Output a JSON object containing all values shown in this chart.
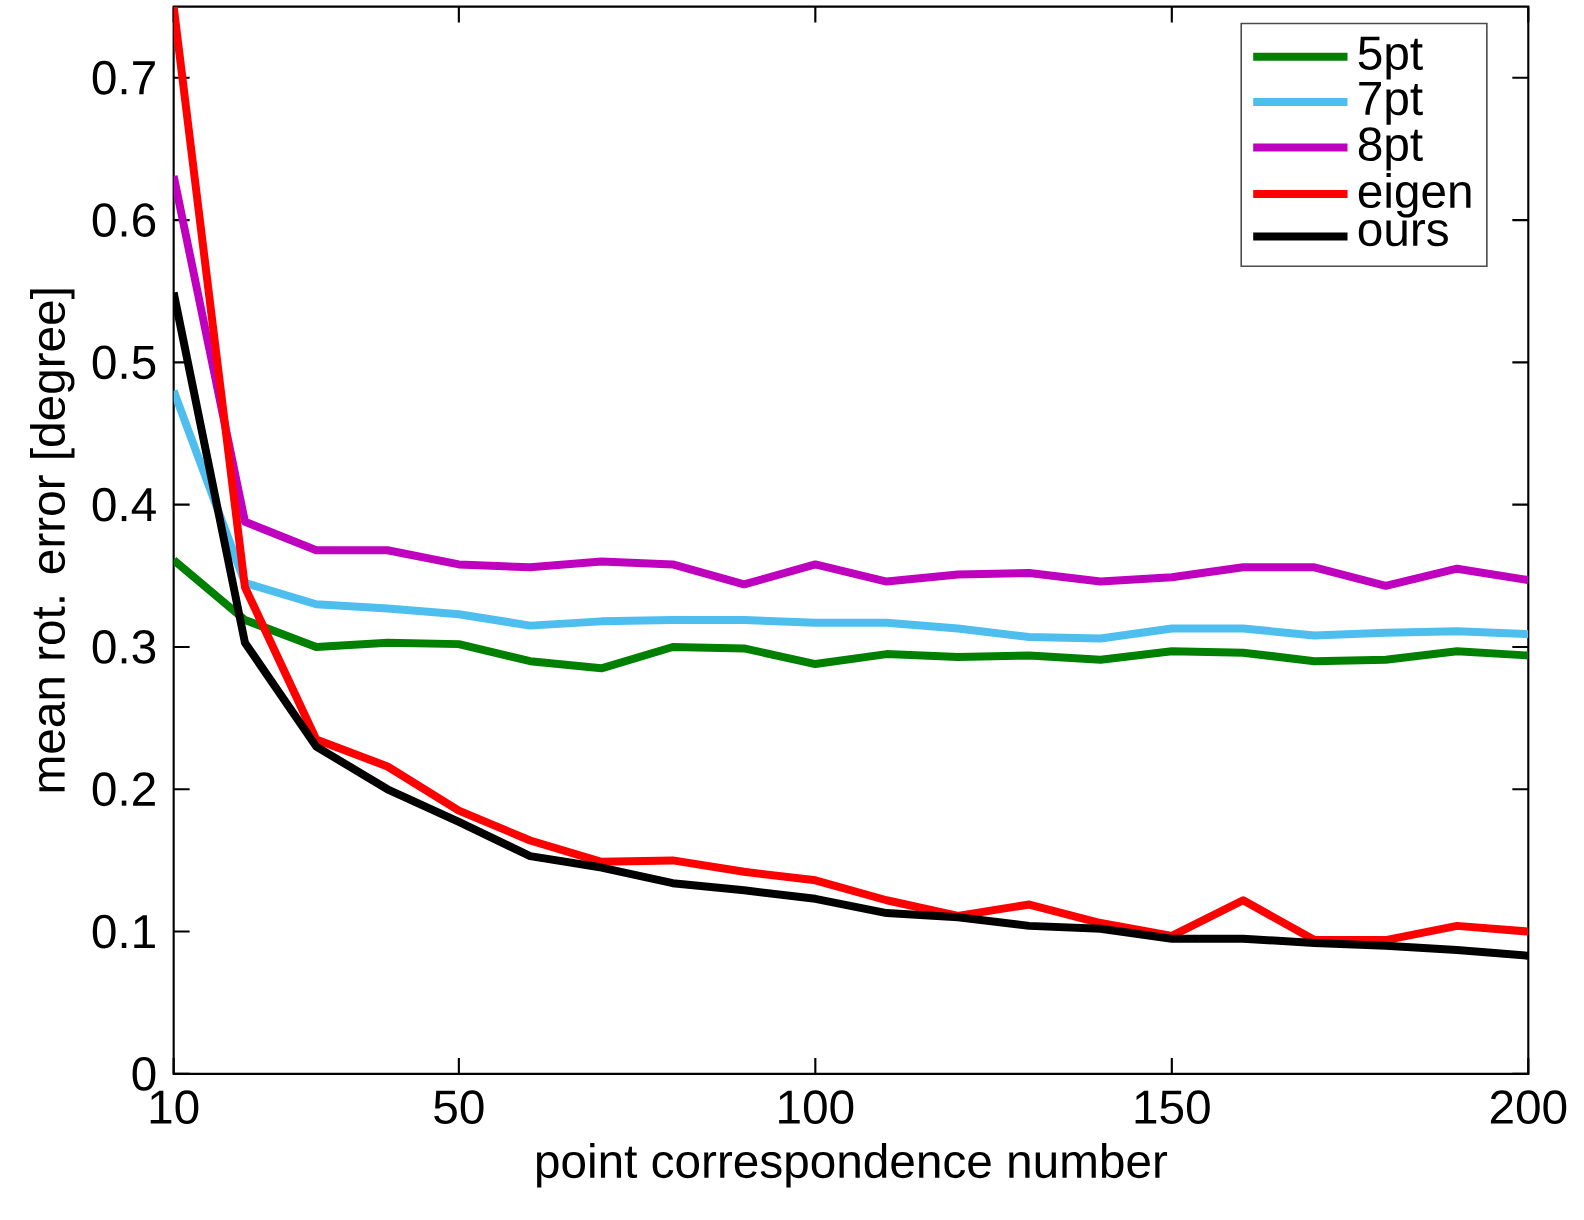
{
  "chart_data": {
    "type": "line",
    "xlabel": "point correspondence number",
    "ylabel": "mean rot. error [degree]",
    "x": [
      10,
      20,
      30,
      40,
      50,
      60,
      70,
      80,
      90,
      100,
      110,
      120,
      130,
      140,
      150,
      160,
      170,
      180,
      190,
      200
    ],
    "xlim": [
      10,
      200
    ],
    "xticks": [
      10,
      50,
      100,
      150,
      200
    ],
    "ylim": [
      0,
      0.75
    ],
    "yticks": [
      0,
      0.1,
      0.2,
      0.3,
      0.4,
      0.5,
      0.6,
      0.7
    ],
    "grid": false,
    "legend": "top right",
    "marker": "none",
    "line_style": "solid",
    "series": [
      {
        "name": "5pt",
        "color": "#008000",
        "values": [
          0.361,
          0.319,
          0.3,
          0.303,
          0.302,
          0.29,
          0.285,
          0.3,
          0.299,
          0.288,
          0.295,
          0.293,
          0.294,
          0.291,
          0.297,
          0.296,
          0.29,
          0.291,
          0.297,
          0.294
        ]
      },
      {
        "name": "7pt",
        "color": "#4dbeee",
        "values": [
          0.48,
          0.345,
          0.33,
          0.327,
          0.323,
          0.315,
          0.318,
          0.319,
          0.319,
          0.317,
          0.317,
          0.313,
          0.307,
          0.306,
          0.313,
          0.313,
          0.308,
          0.31,
          0.311,
          0.309
        ]
      },
      {
        "name": "8pt",
        "color": "#bf00bf",
        "values": [
          0.631,
          0.388,
          0.368,
          0.368,
          0.358,
          0.356,
          0.36,
          0.358,
          0.344,
          0.358,
          0.346,
          0.351,
          0.352,
          0.346,
          0.349,
          0.356,
          0.356,
          0.343,
          0.355,
          0.347
        ]
      },
      {
        "name": "eigen",
        "color": "#ff0000",
        "values": [
          0.75,
          0.342,
          0.235,
          0.216,
          0.185,
          0.164,
          0.149,
          0.15,
          0.142,
          0.136,
          0.122,
          0.111,
          0.119,
          0.106,
          0.097,
          0.122,
          0.094,
          0.094,
          0.104,
          0.1
        ]
      },
      {
        "name": "ours",
        "color": "#000000",
        "values": [
          0.549,
          0.303,
          0.23,
          0.2,
          0.177,
          0.153,
          0.145,
          0.134,
          0.129,
          0.123,
          0.113,
          0.11,
          0.104,
          0.102,
          0.095,
          0.095,
          0.092,
          0.09,
          0.087,
          0.083
        ]
      }
    ]
  }
}
